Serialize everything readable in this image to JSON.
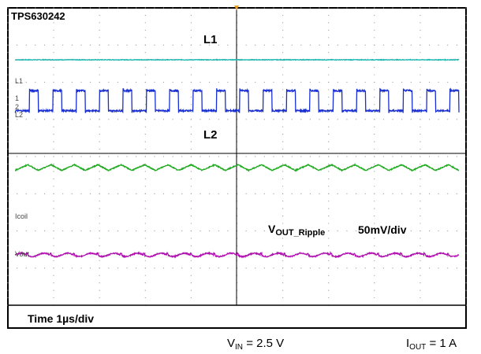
{
  "chart_data": {
    "type": "line",
    "title": "TPS630242",
    "annotations": {
      "l1": "L1",
      "l2": "L2",
      "vout_main": "V",
      "vout_sub": "OUT_Ripple",
      "vout_scale": "50mV/div",
      "time": "Time 1µs/div"
    },
    "channel_markers": [
      "L1",
      "1",
      "L2",
      "2",
      "Icoil",
      "Vout"
    ],
    "conditions": {
      "vin_main": "V",
      "vin_sub": "IN",
      "vin_value": "= 2.5 V",
      "iout_main": "I",
      "iout_sub": "OUT",
      "iout_value": "= 1 A"
    },
    "grid": true,
    "divisions": {
      "x": 10,
      "y": 8
    },
    "series": [
      {
        "trace": "L1",
        "color": "#1fb5b0",
        "kind": "flat",
        "level": 0,
        "noise": 0.04
      },
      {
        "trace": "L2",
        "color": "#1a2fd1",
        "kind": "square",
        "cycles": 19,
        "duty": 0.62,
        "swing": 0.75,
        "noise": 0.06
      },
      {
        "trace": "Icoil",
        "color": "#22aa22",
        "kind": "triangle",
        "cycles": 19,
        "swing": 0.3,
        "noise": 0.05
      },
      {
        "trace": "Vout",
        "color": "#b012b0",
        "kind": "ripple",
        "cycles": 19,
        "swing": 0.18,
        "noise": 0.06
      }
    ]
  }
}
